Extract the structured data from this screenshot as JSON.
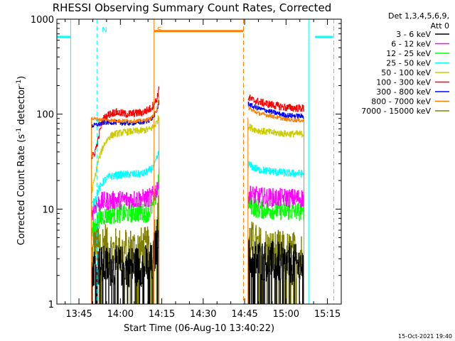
{
  "chart_data": {
    "type": "line",
    "title": "RHESSI Observing Summary Count Rates, Corrected",
    "xlabel": "Start Time (06-Aug-10 13:40:22)",
    "ylabel_main": "Corrected Count Rate (s",
    "ylabel_sup1": "-1",
    "ylabel_mid": " detector",
    "ylabel_sup2": "-1",
    "ylabel_end": ")",
    "y_scale": "log",
    "ylim": [
      1,
      1000
    ],
    "xlim_minutes": [
      -3,
      100
    ],
    "x_ticks": [
      {
        "m": 5,
        "label": "13:45"
      },
      {
        "m": 20,
        "label": "14:00"
      },
      {
        "m": 35,
        "label": "14:15"
      },
      {
        "m": 50,
        "label": "14:30"
      },
      {
        "m": 65,
        "label": "14:45"
      },
      {
        "m": 80,
        "label": "15:00"
      },
      {
        "m": 95,
        "label": "15:15"
      }
    ],
    "y_ticks": [
      {
        "v": 1,
        "label": "1"
      },
      {
        "v": 10,
        "label": "10"
      },
      {
        "v": 100,
        "label": "100"
      },
      {
        "v": 1000,
        "label": "1000"
      }
    ],
    "legend": {
      "placement": "right",
      "header": [
        "Det 1,3,4,5,6,9,",
        "Att 0"
      ],
      "entries": [
        {
          "label": "3 - 6 keV",
          "color": "#000000"
        },
        {
          "label": "6 - 12 keV",
          "color": "#ff00ff"
        },
        {
          "label": "12 - 25 keV",
          "color": "#00ff00"
        },
        {
          "label": "25 - 50 keV",
          "color": "#00ffff"
        },
        {
          "label": "50 - 100 keV",
          "color": "#cccc00"
        },
        {
          "label": "100 - 300 keV",
          "color": "#ff0000"
        },
        {
          "label": "300 - 800 keV",
          "color": "#0000ff"
        },
        {
          "label": "800 - 7000 keV",
          "color": "#ff8000"
        },
        {
          "label": "7000 - 15000 keV",
          "color": "#808000"
        }
      ]
    },
    "annotations": [
      {
        "text": "N",
        "color": "#00ffff",
        "x_minutes": 11.5
      },
      {
        "text": "S",
        "color": "#ff8000",
        "x_minutes": 31.5
      }
    ],
    "night_bars": [
      {
        "x0": -3,
        "x1": 2,
        "y": 650
      },
      {
        "x0": 90.5,
        "x1": 97,
        "y": 650
      }
    ],
    "night_lines": [
      {
        "x": 2,
        "style": "solid",
        "color": "#00ffff"
      },
      {
        "x": 11.5,
        "style": "dashed",
        "color": "#00ffff"
      },
      {
        "x": 88.2,
        "style": "solid",
        "color": "#00ffff"
      },
      {
        "x": 97.3,
        "style": "dashed",
        "color": "#00ffff"
      }
    ],
    "saa_bar": {
      "x0": 32.2,
      "x1": 64.6,
      "y": 750,
      "color": "#ff8000"
    },
    "saa_lines": [
      {
        "x": 32.2,
        "style": "solid",
        "color": "#ff8000"
      },
      {
        "x": 64.6,
        "style": "dashed",
        "color": "#ff8000"
      }
    ],
    "segments": [
      [
        9.5,
        34.0
      ],
      [
        66.2,
        86.5
      ]
    ],
    "series": [
      {
        "name": "7000 - 15000 keV",
        "color": "#808000",
        "points": [
          [
            9.5,
            3.2
          ],
          [
            10.2,
            3.2
          ],
          [
            10.2,
            4.3
          ],
          [
            15,
            4.3
          ],
          [
            15,
            3.6
          ],
          [
            31.3,
            3.7
          ],
          [
            32.2,
            4.8
          ],
          [
            33.1,
            7.5
          ],
          [
            34.0,
            9.0
          ]
        ],
        "points2": [
          [
            66.2,
            5.0
          ],
          [
            67.5,
            4.3
          ],
          [
            70,
            3.8
          ],
          [
            75,
            3.5
          ],
          [
            80,
            3.3
          ],
          [
            86.5,
            3.3
          ]
        ],
        "noise": 0.25,
        "dropouts": true
      },
      {
        "name": "3 - 6 keV",
        "color": "#000000",
        "points": [
          [
            9.5,
            2.5
          ],
          [
            15,
            2.5
          ],
          [
            25,
            2.5
          ],
          [
            31.5,
            2.6
          ],
          [
            33,
            4.2
          ],
          [
            34.0,
            7.5
          ]
        ],
        "points2": [
          [
            66.2,
            3.0
          ],
          [
            75,
            2.8
          ],
          [
            86.5,
            2.5
          ]
        ],
        "noise": 0.22,
        "dropouts": true
      },
      {
        "name": "12 - 25 keV",
        "color": "#00ff00",
        "points": [
          [
            9.5,
            5.5
          ],
          [
            10.5,
            6.5
          ],
          [
            12,
            7.8
          ],
          [
            14,
            8.5
          ],
          [
            20,
            9.0
          ],
          [
            30,
            9.2
          ],
          [
            32,
            11
          ],
          [
            33,
            15
          ],
          [
            34.0,
            22
          ]
        ],
        "points2": [
          [
            66.2,
            12
          ],
          [
            68,
            10.5
          ],
          [
            70,
            10.0
          ],
          [
            75,
            9.8
          ],
          [
            80,
            9.5
          ],
          [
            86.5,
            9.5
          ]
        ],
        "noise": 0.1,
        "dropouts": false
      },
      {
        "name": "6 - 12 keV",
        "color": "#ff00ff",
        "points": [
          [
            9.5,
            9.0
          ],
          [
            11,
            11
          ],
          [
            13,
            12
          ],
          [
            20,
            12.5
          ],
          [
            30,
            13
          ],
          [
            32,
            14
          ],
          [
            33,
            16
          ],
          [
            34.0,
            20
          ]
        ],
        "points2": [
          [
            66.2,
            14.5
          ],
          [
            70,
            13.5
          ],
          [
            75,
            13.2
          ],
          [
            86.5,
            13
          ]
        ],
        "noise": 0.1,
        "dropouts": false
      },
      {
        "name": "25 - 50 keV",
        "color": "#00ffff",
        "points": [
          [
            9.5,
            11
          ],
          [
            10.5,
            12
          ],
          [
            12,
            16
          ],
          [
            14,
            20
          ],
          [
            16,
            22
          ],
          [
            20,
            23
          ],
          [
            28,
            23.5
          ],
          [
            31,
            26
          ],
          [
            32.5,
            30
          ],
          [
            34.0,
            40
          ]
        ],
        "points2": [
          [
            66.2,
            30
          ],
          [
            68,
            27.5
          ],
          [
            70,
            26
          ],
          [
            75,
            25
          ],
          [
            80,
            24
          ],
          [
            86.5,
            23.5
          ]
        ],
        "noise": 0.04,
        "dropouts": false
      },
      {
        "name": "50 - 100 keV",
        "color": "#cccc00",
        "points": [
          [
            9.5,
            15
          ],
          [
            10.5,
            20
          ],
          [
            12,
            33
          ],
          [
            14,
            48
          ],
          [
            16,
            58
          ],
          [
            18,
            62
          ],
          [
            22,
            65
          ],
          [
            28,
            67
          ],
          [
            31,
            70
          ],
          [
            33,
            80
          ],
          [
            34.0,
            95
          ]
        ],
        "points2": [
          [
            66.2,
            75
          ],
          [
            68,
            70
          ],
          [
            70,
            67
          ],
          [
            75,
            64
          ],
          [
            80,
            62
          ],
          [
            86.5,
            62
          ]
        ],
        "noise": 0.035,
        "dropouts": false
      },
      {
        "name": "100 - 300 keV",
        "color": "#ff0000",
        "points": [
          [
            9.5,
            35
          ],
          [
            10.5,
            38
          ],
          [
            12,
            55
          ],
          [
            13,
            78
          ],
          [
            14,
            90
          ],
          [
            16,
            100
          ],
          [
            18,
            105
          ],
          [
            22,
            100
          ],
          [
            28,
            104
          ],
          [
            31,
            115
          ],
          [
            33,
            140
          ],
          [
            34.0,
            185
          ]
        ],
        "points2": [
          [
            66.2,
            150
          ],
          [
            68,
            140
          ],
          [
            70,
            135
          ],
          [
            75,
            125
          ],
          [
            80,
            117
          ],
          [
            86.5,
            115
          ]
        ],
        "noise": 0.04,
        "dropouts": false
      },
      {
        "name": "300 - 800 keV",
        "color": "#0000ff",
        "points": [
          [
            9.5,
            75
          ],
          [
            12,
            78
          ],
          [
            14,
            82
          ],
          [
            18,
            82
          ],
          [
            22,
            80
          ],
          [
            28,
            82
          ],
          [
            31,
            88
          ],
          [
            33,
            105
          ],
          [
            34.0,
            135
          ]
        ],
        "points2": [
          [
            66.2,
            130
          ],
          [
            68,
            120
          ],
          [
            70,
            115
          ],
          [
            75,
            105
          ],
          [
            80,
            97
          ],
          [
            86.5,
            95
          ]
        ],
        "noise": 0.025,
        "dropouts": false
      },
      {
        "name": "800 - 7000 keV",
        "color": "#ff8000",
        "points": [
          [
            9.5,
            90
          ],
          [
            12,
            88
          ],
          [
            16,
            86
          ],
          [
            20,
            85
          ],
          [
            28,
            85
          ],
          [
            31,
            90
          ],
          [
            33,
            110
          ],
          [
            34.0,
            150
          ]
        ],
        "points2": [
          [
            66.2,
            118
          ],
          [
            68,
            108
          ],
          [
            70,
            102
          ],
          [
            75,
            95
          ],
          [
            80,
            88
          ],
          [
            86.5,
            85
          ]
        ],
        "noise": 0.02,
        "dropouts": false
      }
    ]
  },
  "footer_timestamp": "15-Oct-2021 19:40"
}
